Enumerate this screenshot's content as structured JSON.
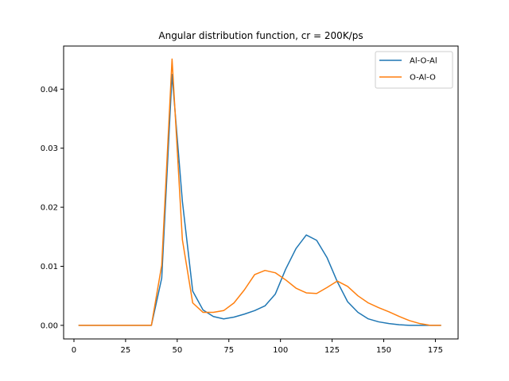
{
  "chart_data": {
    "type": "line",
    "title": "Angular distribution function, cr = 200K/ps",
    "xlabel": "",
    "ylabel": "",
    "xlim": [
      -5,
      186
    ],
    "ylim": [
      -0.0023,
      0.0473
    ],
    "xticks": [
      0,
      25,
      50,
      75,
      100,
      125,
      150,
      175
    ],
    "yticks": [
      0.0,
      0.01,
      0.02,
      0.03,
      0.04
    ],
    "ytick_labels": [
      "0.00",
      "0.01",
      "0.02",
      "0.03",
      "0.04"
    ],
    "grid": false,
    "legend_position": "top-right",
    "x": [
      2.5,
      7.5,
      12.5,
      17.5,
      22.5,
      27.5,
      32.5,
      37.5,
      42.5,
      47.5,
      52.5,
      57.5,
      62.5,
      67.5,
      72.5,
      77.5,
      82.5,
      87.5,
      92.5,
      97.5,
      102.5,
      107.5,
      112.5,
      117.5,
      122.5,
      127.5,
      132.5,
      137.5,
      142.5,
      147.5,
      152.5,
      157.5,
      162.5,
      167.5,
      172.5,
      177.5
    ],
    "series": [
      {
        "name": "Al-O-Al",
        "color": "#1f77b4",
        "values": [
          0.0,
          0.0,
          0.0,
          0.0,
          0.0,
          0.0,
          0.0,
          0.0,
          0.008,
          0.0425,
          0.021,
          0.0058,
          0.0026,
          0.0015,
          0.0011,
          0.0014,
          0.0019,
          0.0025,
          0.0033,
          0.0053,
          0.0095,
          0.013,
          0.0153,
          0.0144,
          0.0115,
          0.0074,
          0.004,
          0.0022,
          0.0011,
          0.0006,
          0.0003,
          0.0001,
          0.0,
          0.0,
          0.0,
          0.0
        ]
      },
      {
        "name": "O-Al-O",
        "color": "#ff7f0e",
        "values": [
          0.0,
          0.0,
          0.0,
          0.0,
          0.0,
          0.0,
          0.0,
          0.0,
          0.0102,
          0.0451,
          0.0145,
          0.0038,
          0.0022,
          0.0022,
          0.0025,
          0.0038,
          0.006,
          0.0086,
          0.0093,
          0.0089,
          0.0077,
          0.0063,
          0.0055,
          0.0054,
          0.0064,
          0.0075,
          0.0066,
          0.005,
          0.0038,
          0.003,
          0.0023,
          0.0015,
          0.0008,
          0.0003,
          0.0,
          0.0
        ]
      }
    ]
  }
}
